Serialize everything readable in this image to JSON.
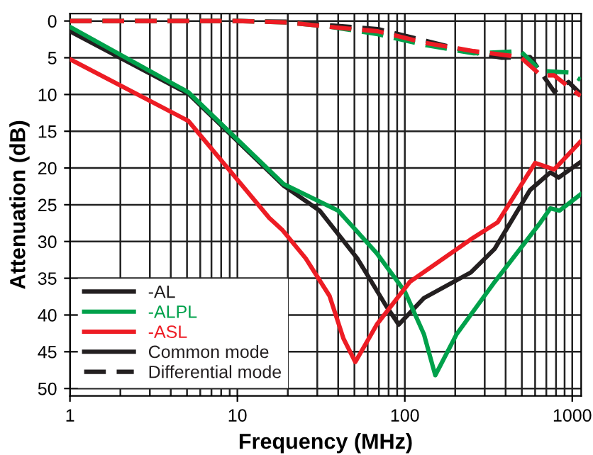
{
  "chart_data": {
    "type": "line",
    "xlabel": "Frequency (MHz)",
    "ylabel": "Attenuation (dB)",
    "log": "x",
    "xlim": [
      1,
      1130
    ],
    "xticks": [
      1,
      10,
      100,
      1000
    ],
    "ylim": [
      51,
      -1
    ],
    "yticks": [
      0,
      5,
      10,
      15,
      20,
      25,
      30,
      35,
      40,
      45,
      50
    ],
    "grid": true,
    "legend": "bottom left",
    "marker": "none",
    "annotations": [
      "Common mode",
      "Differential mode"
    ],
    "series": [
      {
        "name": "-AL",
        "color": "#231f20",
        "line_style": "solid",
        "x": [
          1,
          5.1,
          18.9,
          31,
          52,
          77,
          92,
          130,
          248,
          344,
          472,
          560,
          740,
          830,
          1120
        ],
        "values": [
          1.4,
          9.9,
          22.4,
          25.8,
          32.3,
          38.7,
          41.3,
          37.7,
          34.2,
          31,
          25.8,
          23,
          20.6,
          21.3,
          19.2
        ]
      },
      {
        "name": "-ALPL",
        "color": "#00a14b",
        "line_style": "solid",
        "x": [
          1,
          5.1,
          18.9,
          40,
          68,
          100,
          130,
          152,
          204,
          344,
          646,
          740,
          840,
          1120
        ],
        "values": [
          0.8,
          9.7,
          22.2,
          25.8,
          31.6,
          36.8,
          42.6,
          48.2,
          42.6,
          35.5,
          27.4,
          25.5,
          25.8,
          23.6
        ]
      },
      {
        "name": "-ASL",
        "color": "#ed1c24",
        "line_style": "solid",
        "x": [
          1,
          5.1,
          15.5,
          18.5,
          25.6,
          35.5,
          43,
          50.6,
          68,
          107,
          248,
          358,
          600,
          780,
          1120
        ],
        "values": [
          5.2,
          13.6,
          26.8,
          28.4,
          32.3,
          37.4,
          43.2,
          46.4,
          41.3,
          35.5,
          29.7,
          27.4,
          19.3,
          20.2,
          16.4
        ]
      },
      {
        "color": "#231f20",
        "line_style": "dashed",
        "x": [
          1,
          10,
          20,
          36,
          69,
          134,
          258,
          380,
          560,
          780,
          950,
          1120
        ],
        "values": [
          0,
          0,
          0.1,
          0.6,
          1.1,
          2.7,
          4.3,
          5,
          4.9,
          9.6,
          8.3,
          9.9
        ]
      },
      {
        "color": "#00a14b",
        "line_style": "dashed",
        "x": [
          1,
          10,
          20,
          36,
          69,
          134,
          258,
          490,
          650,
          950,
          1120
        ],
        "values": [
          0,
          0,
          0.2,
          0.8,
          1.8,
          3.3,
          4.4,
          4.1,
          6.8,
          7,
          8
        ]
      },
      {
        "color": "#ed1c24",
        "line_style": "dashed",
        "x": [
          1,
          10,
          20,
          36,
          69,
          134,
          258,
          490,
          650,
          780,
          1120
        ],
        "values": [
          0,
          0,
          0.2,
          0.8,
          1.4,
          3,
          4.1,
          4.9,
          7.4,
          7.4,
          10.2
        ]
      }
    ]
  }
}
